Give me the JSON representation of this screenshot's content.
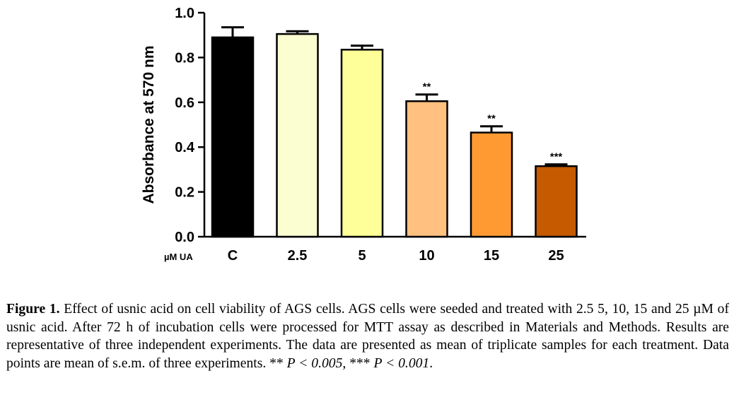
{
  "chart_data": {
    "type": "bar",
    "ylabel": "Absorbance at 570 nm",
    "x_unit_label": "µM UA",
    "categories": [
      "C",
      "2.5",
      "5",
      "10",
      "15",
      "25"
    ],
    "values": [
      0.89,
      0.905,
      0.835,
      0.605,
      0.465,
      0.315
    ],
    "errors": [
      0.045,
      0.012,
      0.018,
      0.03,
      0.028,
      0.008
    ],
    "significance": [
      "",
      "",
      "",
      "**",
      "**",
      "***"
    ],
    "colors": [
      "#000000",
      "#FBFED0",
      "#FFFF99",
      "#FFC080",
      "#FF9A33",
      "#C55A00"
    ],
    "ylim": [
      0,
      1.0
    ],
    "yticks": [
      "0.0",
      "0.2",
      "0.4",
      "0.6",
      "0.8",
      "1.0"
    ],
    "grid": false
  },
  "caption": {
    "lead": "Figure 1.",
    "text": " Effect of usnic acid on cell viability of AGS cells. AGS cells were seeded and treated with 2.5 5, 10, 15 and 25 µM of usnic acid. After 72 h of incubation cells were processed for MTT assay as described in Materials and Methods. Results are representative of three independent experiments. The data are presented as mean of triplicate samples for each treatment. Data points are mean of s.e.m. of three experiments. ** ",
    "p1": "P < 0.005",
    "mid": ", *** ",
    "p2": "P < 0.001",
    "end": "."
  }
}
